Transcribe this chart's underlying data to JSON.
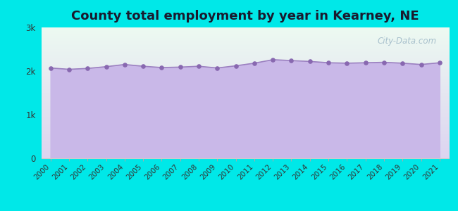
{
  "title": "County total employment by year in Kearney, NE",
  "years": [
    2000,
    2001,
    2002,
    2003,
    2004,
    2005,
    2006,
    2007,
    2008,
    2009,
    2010,
    2011,
    2012,
    2013,
    2014,
    2015,
    2016,
    2017,
    2018,
    2019,
    2020,
    2021
  ],
  "values": [
    2070,
    2040,
    2060,
    2100,
    2150,
    2110,
    2080,
    2090,
    2110,
    2070,
    2120,
    2180,
    2260,
    2240,
    2220,
    2190,
    2180,
    2190,
    2200,
    2180,
    2150,
    2190
  ],
  "ylim": [
    0,
    3000
  ],
  "yticks": [
    0,
    1000,
    2000,
    3000
  ],
  "ytick_labels": [
    "0",
    "1k",
    "2k",
    "3k"
  ],
  "background_color": "#00e8e8",
  "plot_bg_top": "#edfaf2",
  "plot_bg_bottom": "#ddd4f0",
  "fill_color": "#c9b8e8",
  "line_color": "#9b80c0",
  "dot_color": "#8868b0",
  "title_fontsize": 13,
  "title_color": "#1a1a2e",
  "tick_color": "#333333",
  "watermark_text": "City-Data.com",
  "watermark_color": "#a0bac8"
}
